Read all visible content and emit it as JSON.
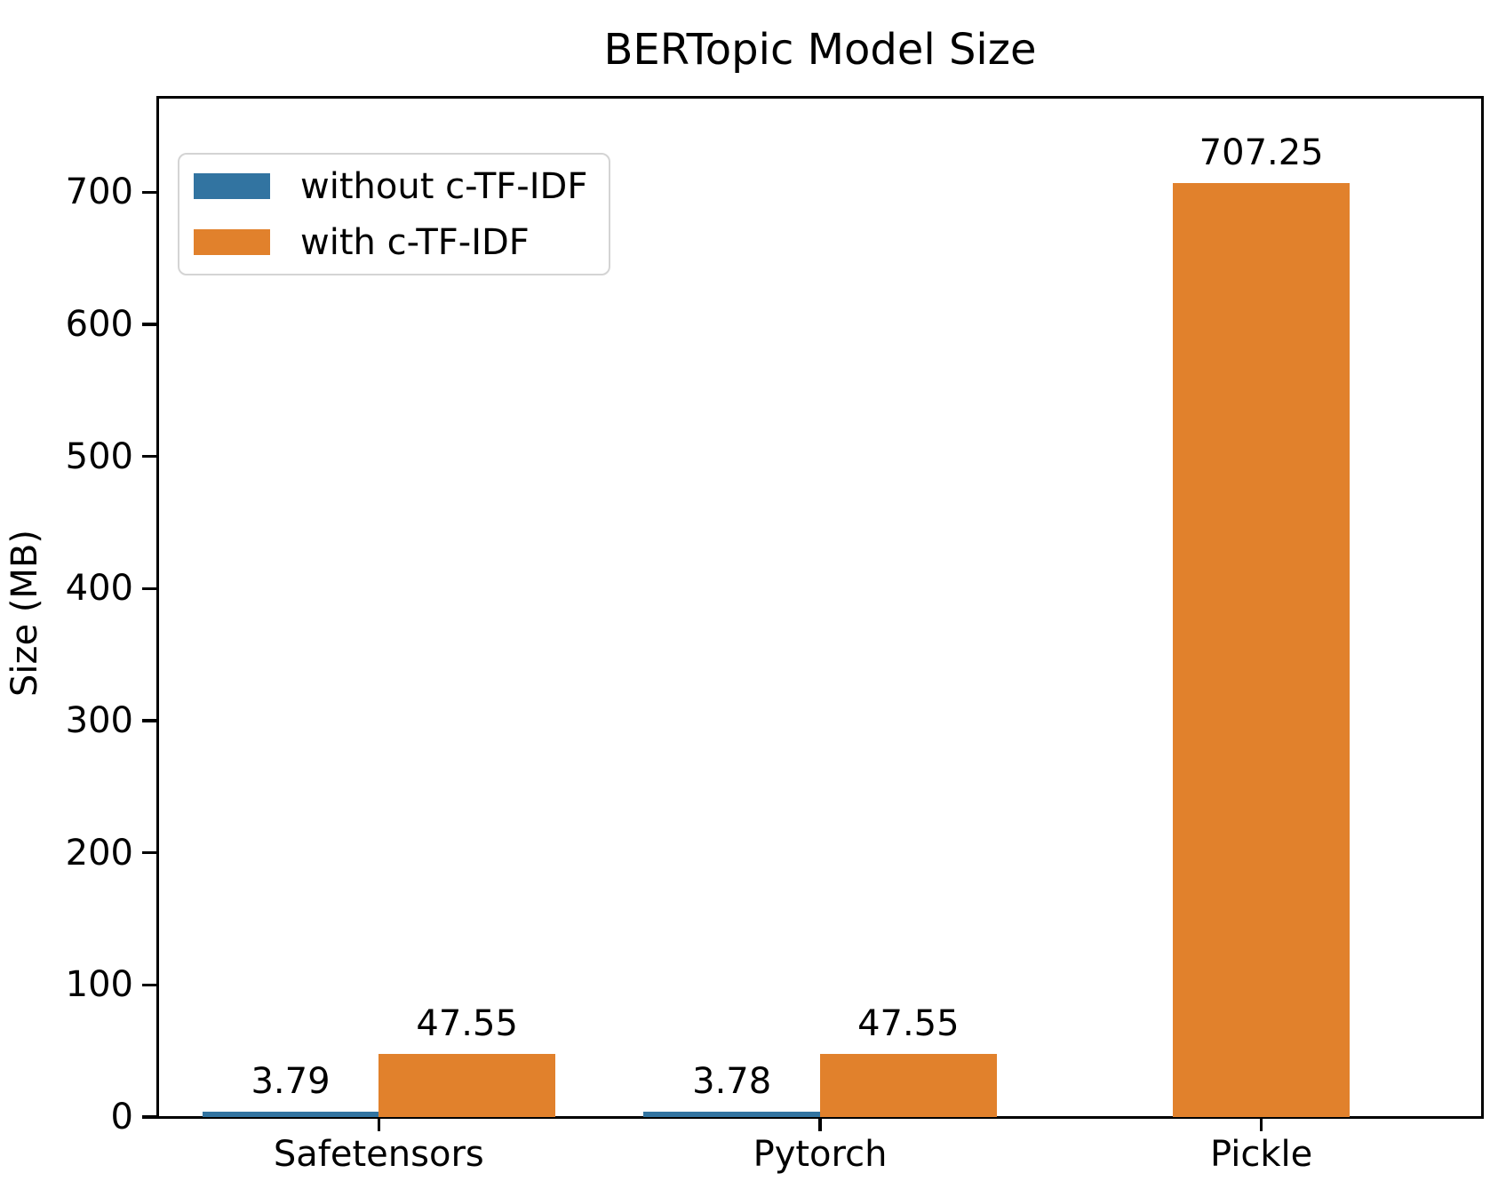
{
  "title": "BERTopic Model Size",
  "chart_data": {
    "type": "bar",
    "title": "BERTopic Model Size",
    "categories": [
      "Safetensors",
      "Pytorch",
      "Pickle"
    ],
    "series": [
      {
        "name": "without c-TF-IDF",
        "color": "#3274a1",
        "values": [
          3.79,
          3.78,
          null
        ]
      },
      {
        "name": "with c-TF-IDF",
        "color": "#e1812c",
        "values": [
          47.55,
          47.55,
          707.25
        ]
      }
    ],
    "bar_value_labels": [
      [
        "3.79",
        "3.78",
        null
      ],
      [
        "47.55",
        "47.55",
        "707.25"
      ]
    ],
    "xlabel": "",
    "ylabel": "Size (MB)",
    "yticks": [
      0,
      100,
      200,
      300,
      400,
      500,
      600,
      700
    ],
    "ylim": [
      0,
      771.5
    ],
    "grid": false,
    "legend": {
      "position": "upper left",
      "entries": [
        "without c-TF-IDF",
        "with c-TF-IDF"
      ]
    },
    "axis_color": "#000000",
    "text_color": "#000000",
    "background_color": "#ffffff"
  }
}
